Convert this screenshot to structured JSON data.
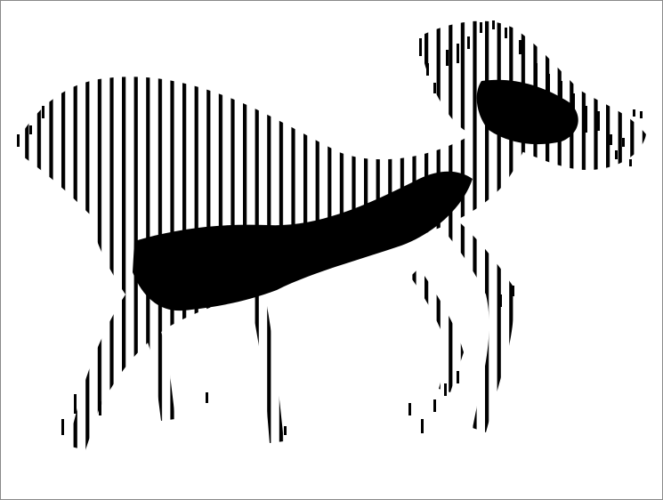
{
  "image": {
    "kind": "halftone-vertical-line-figure",
    "subject_icon": "running-dog-silhouette",
    "ink_color": "#000000",
    "paper_color": "#ffffff",
    "frame_color": "#8a8a8a"
  }
}
